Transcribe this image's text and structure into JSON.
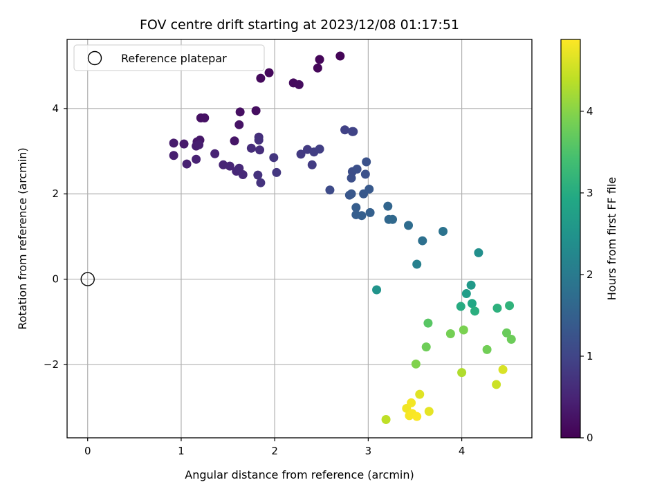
{
  "chart_data": {
    "type": "scatter",
    "title": "FOV centre drift starting at 2023/12/08 01:17:51",
    "xlabel": "Angular distance from reference (arcmin)",
    "ylabel": "Rotation from reference (arcmin)",
    "colorbar_label": "Hours from first FF file",
    "xlim": [
      -0.22,
      4.75
    ],
    "ylim": [
      -3.72,
      5.62
    ],
    "xticks": [
      0,
      1,
      2,
      3,
      4
    ],
    "yticks": [
      -2,
      0,
      2,
      4
    ],
    "colorbar_range": [
      0,
      4.88
    ],
    "colorbar_ticks": [
      0,
      1,
      2,
      3,
      4
    ],
    "colormap": "viridis",
    "grid": true,
    "legend": {
      "position": "top-left",
      "entries": [
        {
          "label": "Reference platepar",
          "marker": "open-circle",
          "x": 0,
          "y": 0
        }
      ]
    },
    "points": [
      {
        "x": 2.7,
        "y": 5.23,
        "c": 0.05
      },
      {
        "x": 2.48,
        "y": 5.15,
        "c": 0.07
      },
      {
        "x": 2.46,
        "y": 4.95,
        "c": 0.08
      },
      {
        "x": 1.94,
        "y": 4.84,
        "c": 0.1
      },
      {
        "x": 1.85,
        "y": 4.71,
        "c": 0.12
      },
      {
        "x": 2.2,
        "y": 4.6,
        "c": 0.13
      },
      {
        "x": 2.26,
        "y": 4.56,
        "c": 0.15
      },
      {
        "x": 1.8,
        "y": 3.95,
        "c": 0.18
      },
      {
        "x": 1.63,
        "y": 3.92,
        "c": 0.2
      },
      {
        "x": 1.21,
        "y": 3.78,
        "c": 0.22
      },
      {
        "x": 1.25,
        "y": 3.78,
        "c": 0.23
      },
      {
        "x": 1.62,
        "y": 3.62,
        "c": 0.25
      },
      {
        "x": 1.57,
        "y": 3.24,
        "c": 0.28
      },
      {
        "x": 1.2,
        "y": 3.26,
        "c": 0.3
      },
      {
        "x": 1.17,
        "y": 3.22,
        "c": 0.32
      },
      {
        "x": 1.03,
        "y": 3.17,
        "c": 0.34
      },
      {
        "x": 0.92,
        "y": 3.19,
        "c": 0.36
      },
      {
        "x": 1.16,
        "y": 3.12,
        "c": 0.38
      },
      {
        "x": 1.19,
        "y": 3.15,
        "c": 0.4
      },
      {
        "x": 0.92,
        "y": 2.9,
        "c": 0.42
      },
      {
        "x": 1.06,
        "y": 2.7,
        "c": 0.44
      },
      {
        "x": 1.16,
        "y": 2.81,
        "c": 0.46
      },
      {
        "x": 1.36,
        "y": 2.94,
        "c": 0.48
      },
      {
        "x": 1.45,
        "y": 2.68,
        "c": 0.5
      },
      {
        "x": 1.52,
        "y": 2.65,
        "c": 0.52
      },
      {
        "x": 1.59,
        "y": 2.53,
        "c": 0.54
      },
      {
        "x": 1.62,
        "y": 2.6,
        "c": 0.56
      },
      {
        "x": 1.66,
        "y": 2.45,
        "c": 0.58
      },
      {
        "x": 1.75,
        "y": 3.07,
        "c": 0.62
      },
      {
        "x": 1.84,
        "y": 3.03,
        "c": 0.64
      },
      {
        "x": 1.83,
        "y": 3.33,
        "c": 0.66
      },
      {
        "x": 1.83,
        "y": 3.26,
        "c": 0.68
      },
      {
        "x": 1.82,
        "y": 2.44,
        "c": 0.7
      },
      {
        "x": 1.85,
        "y": 2.26,
        "c": 0.72
      },
      {
        "x": 1.99,
        "y": 2.85,
        "c": 0.76
      },
      {
        "x": 2.02,
        "y": 2.5,
        "c": 0.78
      },
      {
        "x": 2.28,
        "y": 2.93,
        "c": 0.82
      },
      {
        "x": 2.35,
        "y": 3.04,
        "c": 0.84
      },
      {
        "x": 2.4,
        "y": 2.68,
        "c": 0.86
      },
      {
        "x": 2.42,
        "y": 2.98,
        "c": 0.88
      },
      {
        "x": 2.48,
        "y": 3.05,
        "c": 0.9
      },
      {
        "x": 2.75,
        "y": 3.5,
        "c": 0.95
      },
      {
        "x": 2.83,
        "y": 3.46,
        "c": 0.97
      },
      {
        "x": 2.84,
        "y": 3.46,
        "c": 0.98
      },
      {
        "x": 2.59,
        "y": 2.09,
        "c": 1.1
      },
      {
        "x": 2.83,
        "y": 2.52,
        "c": 1.15
      },
      {
        "x": 2.82,
        "y": 2.37,
        "c": 1.17
      },
      {
        "x": 2.88,
        "y": 2.58,
        "c": 1.19
      },
      {
        "x": 2.97,
        "y": 2.46,
        "c": 1.21
      },
      {
        "x": 2.98,
        "y": 2.75,
        "c": 1.23
      },
      {
        "x": 2.8,
        "y": 1.97,
        "c": 1.3
      },
      {
        "x": 2.82,
        "y": 2.0,
        "c": 1.32
      },
      {
        "x": 2.95,
        "y": 2.0,
        "c": 1.34
      },
      {
        "x": 3.01,
        "y": 2.11,
        "c": 1.36
      },
      {
        "x": 2.87,
        "y": 1.68,
        "c": 1.42
      },
      {
        "x": 2.87,
        "y": 1.51,
        "c": 1.44
      },
      {
        "x": 2.93,
        "y": 1.49,
        "c": 1.46
      },
      {
        "x": 3.02,
        "y": 1.56,
        "c": 1.48
      },
      {
        "x": 3.21,
        "y": 1.71,
        "c": 1.58
      },
      {
        "x": 3.22,
        "y": 1.4,
        "c": 1.62
      },
      {
        "x": 3.26,
        "y": 1.4,
        "c": 1.65
      },
      {
        "x": 3.43,
        "y": 1.26,
        "c": 1.72
      },
      {
        "x": 3.58,
        "y": 0.9,
        "c": 1.8
      },
      {
        "x": 3.8,
        "y": 1.12,
        "c": 1.85
      },
      {
        "x": 3.52,
        "y": 0.35,
        "c": 2.1
      },
      {
        "x": 4.18,
        "y": 0.62,
        "c": 2.4
      },
      {
        "x": 3.09,
        "y": -0.25,
        "c": 2.5
      },
      {
        "x": 4.1,
        "y": -0.14,
        "c": 2.62
      },
      {
        "x": 4.05,
        "y": -0.34,
        "c": 2.7
      },
      {
        "x": 3.99,
        "y": -0.64,
        "c": 3.0
      },
      {
        "x": 4.11,
        "y": -0.57,
        "c": 2.9
      },
      {
        "x": 4.14,
        "y": -0.75,
        "c": 3.05
      },
      {
        "x": 4.38,
        "y": -0.68,
        "c": 3.1
      },
      {
        "x": 4.51,
        "y": -0.62,
        "c": 3.15
      },
      {
        "x": 3.64,
        "y": -1.03,
        "c": 3.6
      },
      {
        "x": 3.88,
        "y": -1.28,
        "c": 3.85
      },
      {
        "x": 4.02,
        "y": -1.19,
        "c": 3.9
      },
      {
        "x": 3.62,
        "y": -1.59,
        "c": 3.8
      },
      {
        "x": 4.27,
        "y": -1.65,
        "c": 3.82
      },
      {
        "x": 4.48,
        "y": -1.26,
        "c": 3.75
      },
      {
        "x": 4.53,
        "y": -1.41,
        "c": 3.78
      },
      {
        "x": 3.51,
        "y": -1.99,
        "c": 3.95
      },
      {
        "x": 4.0,
        "y": -2.19,
        "c": 4.3
      },
      {
        "x": 4.44,
        "y": -2.12,
        "c": 4.6
      },
      {
        "x": 4.37,
        "y": -2.47,
        "c": 4.5
      },
      {
        "x": 3.55,
        "y": -2.7,
        "c": 4.65
      },
      {
        "x": 3.65,
        "y": -3.1,
        "c": 4.7
      },
      {
        "x": 3.41,
        "y": -3.03,
        "c": 4.78
      },
      {
        "x": 3.46,
        "y": -2.9,
        "c": 4.8
      },
      {
        "x": 3.44,
        "y": -3.2,
        "c": 4.82
      },
      {
        "x": 3.47,
        "y": -3.15,
        "c": 4.84
      },
      {
        "x": 3.52,
        "y": -3.22,
        "c": 4.86
      },
      {
        "x": 3.19,
        "y": -3.29,
        "c": 4.4
      }
    ]
  }
}
